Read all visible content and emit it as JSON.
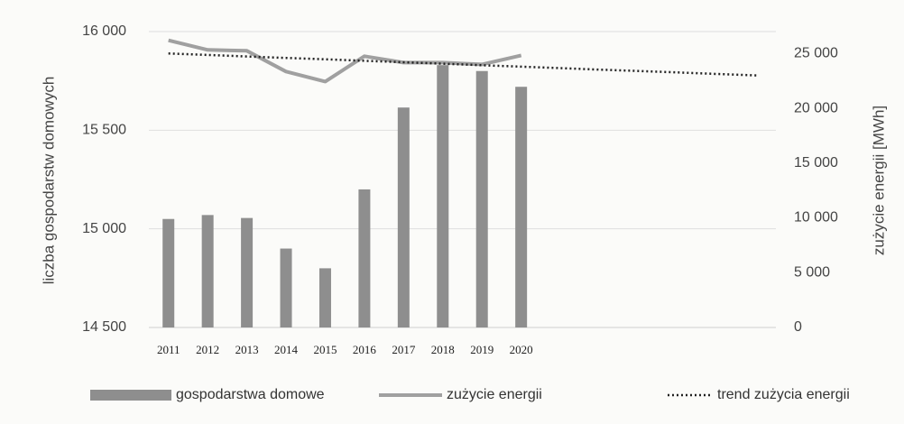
{
  "chart_data": {
    "type": "combo",
    "categories": [
      "2011",
      "2012",
      "2013",
      "2014",
      "2015",
      "2016",
      "2017",
      "2018",
      "2019",
      "2020",
      null,
      null,
      null,
      null,
      null,
      null
    ],
    "series": [
      {
        "name": "gospodarstwa domowe",
        "type": "bar",
        "axis": "y",
        "color": "#8e8e8e",
        "values": [
          15050,
          15070,
          15055,
          14900,
          14800,
          15200,
          15615,
          15830,
          15800,
          15720,
          null,
          null,
          null,
          null,
          null,
          null
        ]
      },
      {
        "name": "zużycie energii",
        "type": "line",
        "axis": "y2",
        "color": "#a0a0a0",
        "style": "solid",
        "values": [
          26200,
          25330,
          25250,
          23350,
          22440,
          24750,
          24170,
          24170,
          24000,
          24830,
          null,
          null,
          null,
          null,
          null,
          null
        ]
      },
      {
        "name": "trend zużycia energii",
        "type": "line",
        "axis": "y2",
        "color": "#222222",
        "style": "dotted",
        "values": [
          25000,
          24870,
          24730,
          24600,
          24470,
          24330,
          24200,
          24070,
          23930,
          23800,
          23670,
          23530,
          23400,
          23270,
          23130,
          23000
        ]
      }
    ],
    "ylabel": "liczba gospodarstw domowych",
    "y2label": "zużycie energii [MWh]",
    "ylim": [
      14500,
      16000
    ],
    "yticks": [
      {
        "value": 14500,
        "label": "14 500"
      },
      {
        "value": 15000,
        "label": "15 000"
      },
      {
        "value": 15500,
        "label": "15 500"
      },
      {
        "value": 16000,
        "label": "16 000"
      }
    ],
    "y2lim": [
      0,
      27000
    ],
    "y2ticks": [
      0,
      {
        "value": 5000,
        "label": "5 000"
      },
      {
        "value": 10000,
        "label": "10 000"
      },
      {
        "value": 15000,
        "label": "15 000"
      },
      {
        "value": 20000,
        "label": "20 000"
      },
      {
        "value": 25000,
        "label": "25 000"
      }
    ],
    "grid": true,
    "legend": "bottom"
  }
}
